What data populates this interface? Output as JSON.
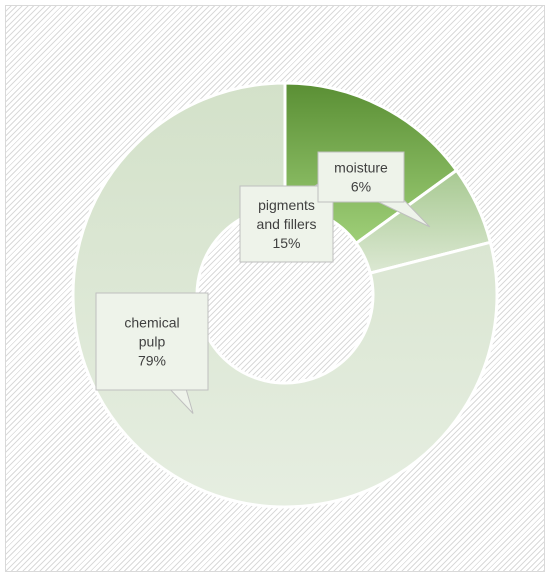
{
  "chart_data": {
    "type": "pie",
    "categories": [
      "pigments and fillers",
      "moisture",
      "chemical pulp"
    ],
    "values": [
      15,
      6,
      79
    ],
    "colors": [
      "#5b9a38",
      "#b0d09c",
      "#d9e6d0"
    ],
    "data_labels": [
      [
        "pigments",
        "and fillers",
        "15%"
      ],
      [
        "moisture",
        "6%"
      ],
      [
        "chemical",
        "pulp",
        "79%"
      ]
    ],
    "legend": "none",
    "hole": "donut"
  }
}
